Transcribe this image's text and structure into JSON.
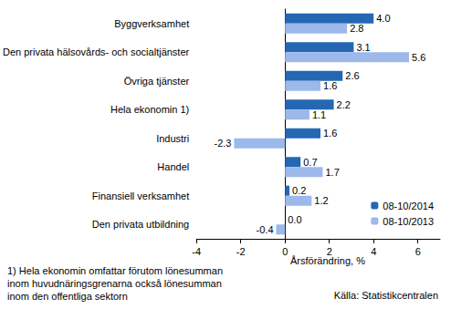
{
  "chart_data": {
    "type": "bar",
    "orientation": "horizontal",
    "categories": [
      "Byggverksamhet",
      "Den privata hälsovårds- och socialtjänster",
      "Övriga tjänster",
      "Hela ekonomin 1)",
      "Industri",
      "Handel",
      "Finansiell verksamhet",
      "Den privata utbildning"
    ],
    "series": [
      {
        "name": "08-10/2014",
        "color": "#2468b4",
        "values": [
          4.0,
          3.1,
          2.6,
          2.2,
          1.6,
          0.7,
          0.2,
          0.0
        ],
        "value_labels": [
          "4.0",
          "3.1",
          "2.6",
          "2.2",
          "1.6",
          "0.7",
          "0.2",
          "0.0"
        ]
      },
      {
        "name": "08-10/2013",
        "color": "#9db8ea",
        "values": [
          2.8,
          5.6,
          1.6,
          1.1,
          -2.3,
          1.7,
          1.2,
          -0.4
        ],
        "value_labels": [
          "2.8",
          "5.6",
          "1.6",
          "1.1",
          "-2.3",
          "1.7",
          "1.2",
          "-0.4"
        ]
      }
    ],
    "xlim": [
      -4,
      7
    ],
    "xticks": [
      -4,
      -2,
      0,
      2,
      4,
      6
    ],
    "x_label": "Årsförändring, %",
    "annotations": [
      "1) Hela ekonomin omfattar förutom lönesumman\ninom huvudnäringsgrenarna också lönesumman\ninom den offentliga sektorn",
      "Källa: Statistikcentralen"
    ],
    "data_labels": true,
    "legend": "lower right",
    "grid": false
  }
}
